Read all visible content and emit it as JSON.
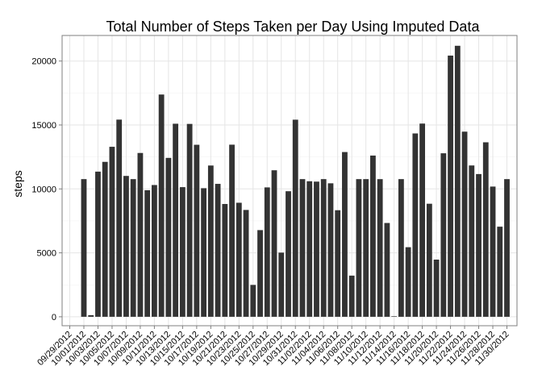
{
  "chart_data": {
    "type": "bar",
    "title": "Total Number of Steps Taken per Day Using Imputed Data",
    "xlabel": "",
    "ylabel": "steps",
    "ylim": [
      -700,
      22000
    ],
    "yticks": [
      0,
      5000,
      10000,
      15000,
      20000
    ],
    "grid": true,
    "x_tick_labels": [
      "09/29/2012",
      "10/01/2012",
      "10/03/2012",
      "10/05/2012",
      "10/07/2012",
      "10/09/2012",
      "10/11/2012",
      "10/13/2012",
      "10/15/2012",
      "10/17/2012",
      "10/19/2012",
      "10/21/2012",
      "10/23/2012",
      "10/25/2012",
      "10/27/2012",
      "10/29/2012",
      "10/31/2012",
      "11/02/2012",
      "11/04/2012",
      "11/06/2012",
      "11/08/2012",
      "11/10/2012",
      "11/12/2012",
      "11/14/2012",
      "11/16/2012",
      "11/18/2012",
      "11/20/2012",
      "11/22/2012",
      "11/24/2012",
      "11/26/2012",
      "11/28/2012",
      "11/30/2012"
    ],
    "categories": [
      "10/01/2012",
      "10/02/2012",
      "10/03/2012",
      "10/04/2012",
      "10/05/2012",
      "10/06/2012",
      "10/07/2012",
      "10/08/2012",
      "10/09/2012",
      "10/10/2012",
      "10/11/2012",
      "10/12/2012",
      "10/13/2012",
      "10/14/2012",
      "10/15/2012",
      "10/16/2012",
      "10/17/2012",
      "10/18/2012",
      "10/19/2012",
      "10/20/2012",
      "10/21/2012",
      "10/22/2012",
      "10/23/2012",
      "10/24/2012",
      "10/25/2012",
      "10/26/2012",
      "10/27/2012",
      "10/28/2012",
      "10/29/2012",
      "10/30/2012",
      "10/31/2012",
      "11/01/2012",
      "11/02/2012",
      "11/03/2012",
      "11/04/2012",
      "11/05/2012",
      "11/06/2012",
      "11/07/2012",
      "11/08/2012",
      "11/09/2012",
      "11/10/2012",
      "11/11/2012",
      "11/12/2012",
      "11/13/2012",
      "11/14/2012",
      "11/15/2012",
      "11/16/2012",
      "11/17/2012",
      "11/18/2012",
      "11/19/2012",
      "11/20/2012",
      "11/21/2012",
      "11/22/2012",
      "11/23/2012",
      "11/24/2012",
      "11/25/2012",
      "11/26/2012",
      "11/27/2012",
      "11/28/2012",
      "11/29/2012",
      "11/30/2012"
    ],
    "values": [
      10766,
      126,
      11352,
      12116,
      13294,
      15420,
      11015,
      10766,
      12811,
      9900,
      10304,
      17382,
      12426,
      15098,
      10139,
      15084,
      13452,
      10056,
      11829,
      10395,
      8821,
      13460,
      8918,
      8355,
      2492,
      6778,
      10119,
      11458,
      5018,
      9819,
      15414,
      10766,
      10600,
      10571,
      10766,
      10439,
      8334,
      12883,
      3219,
      10766,
      10766,
      12608,
      10765,
      7336,
      41,
      10766,
      5441,
      14339,
      15110,
      8841,
      4472,
      12787,
      20427,
      21194,
      14478,
      11834,
      11162,
      13646,
      10183,
      7047,
      10766
    ]
  }
}
